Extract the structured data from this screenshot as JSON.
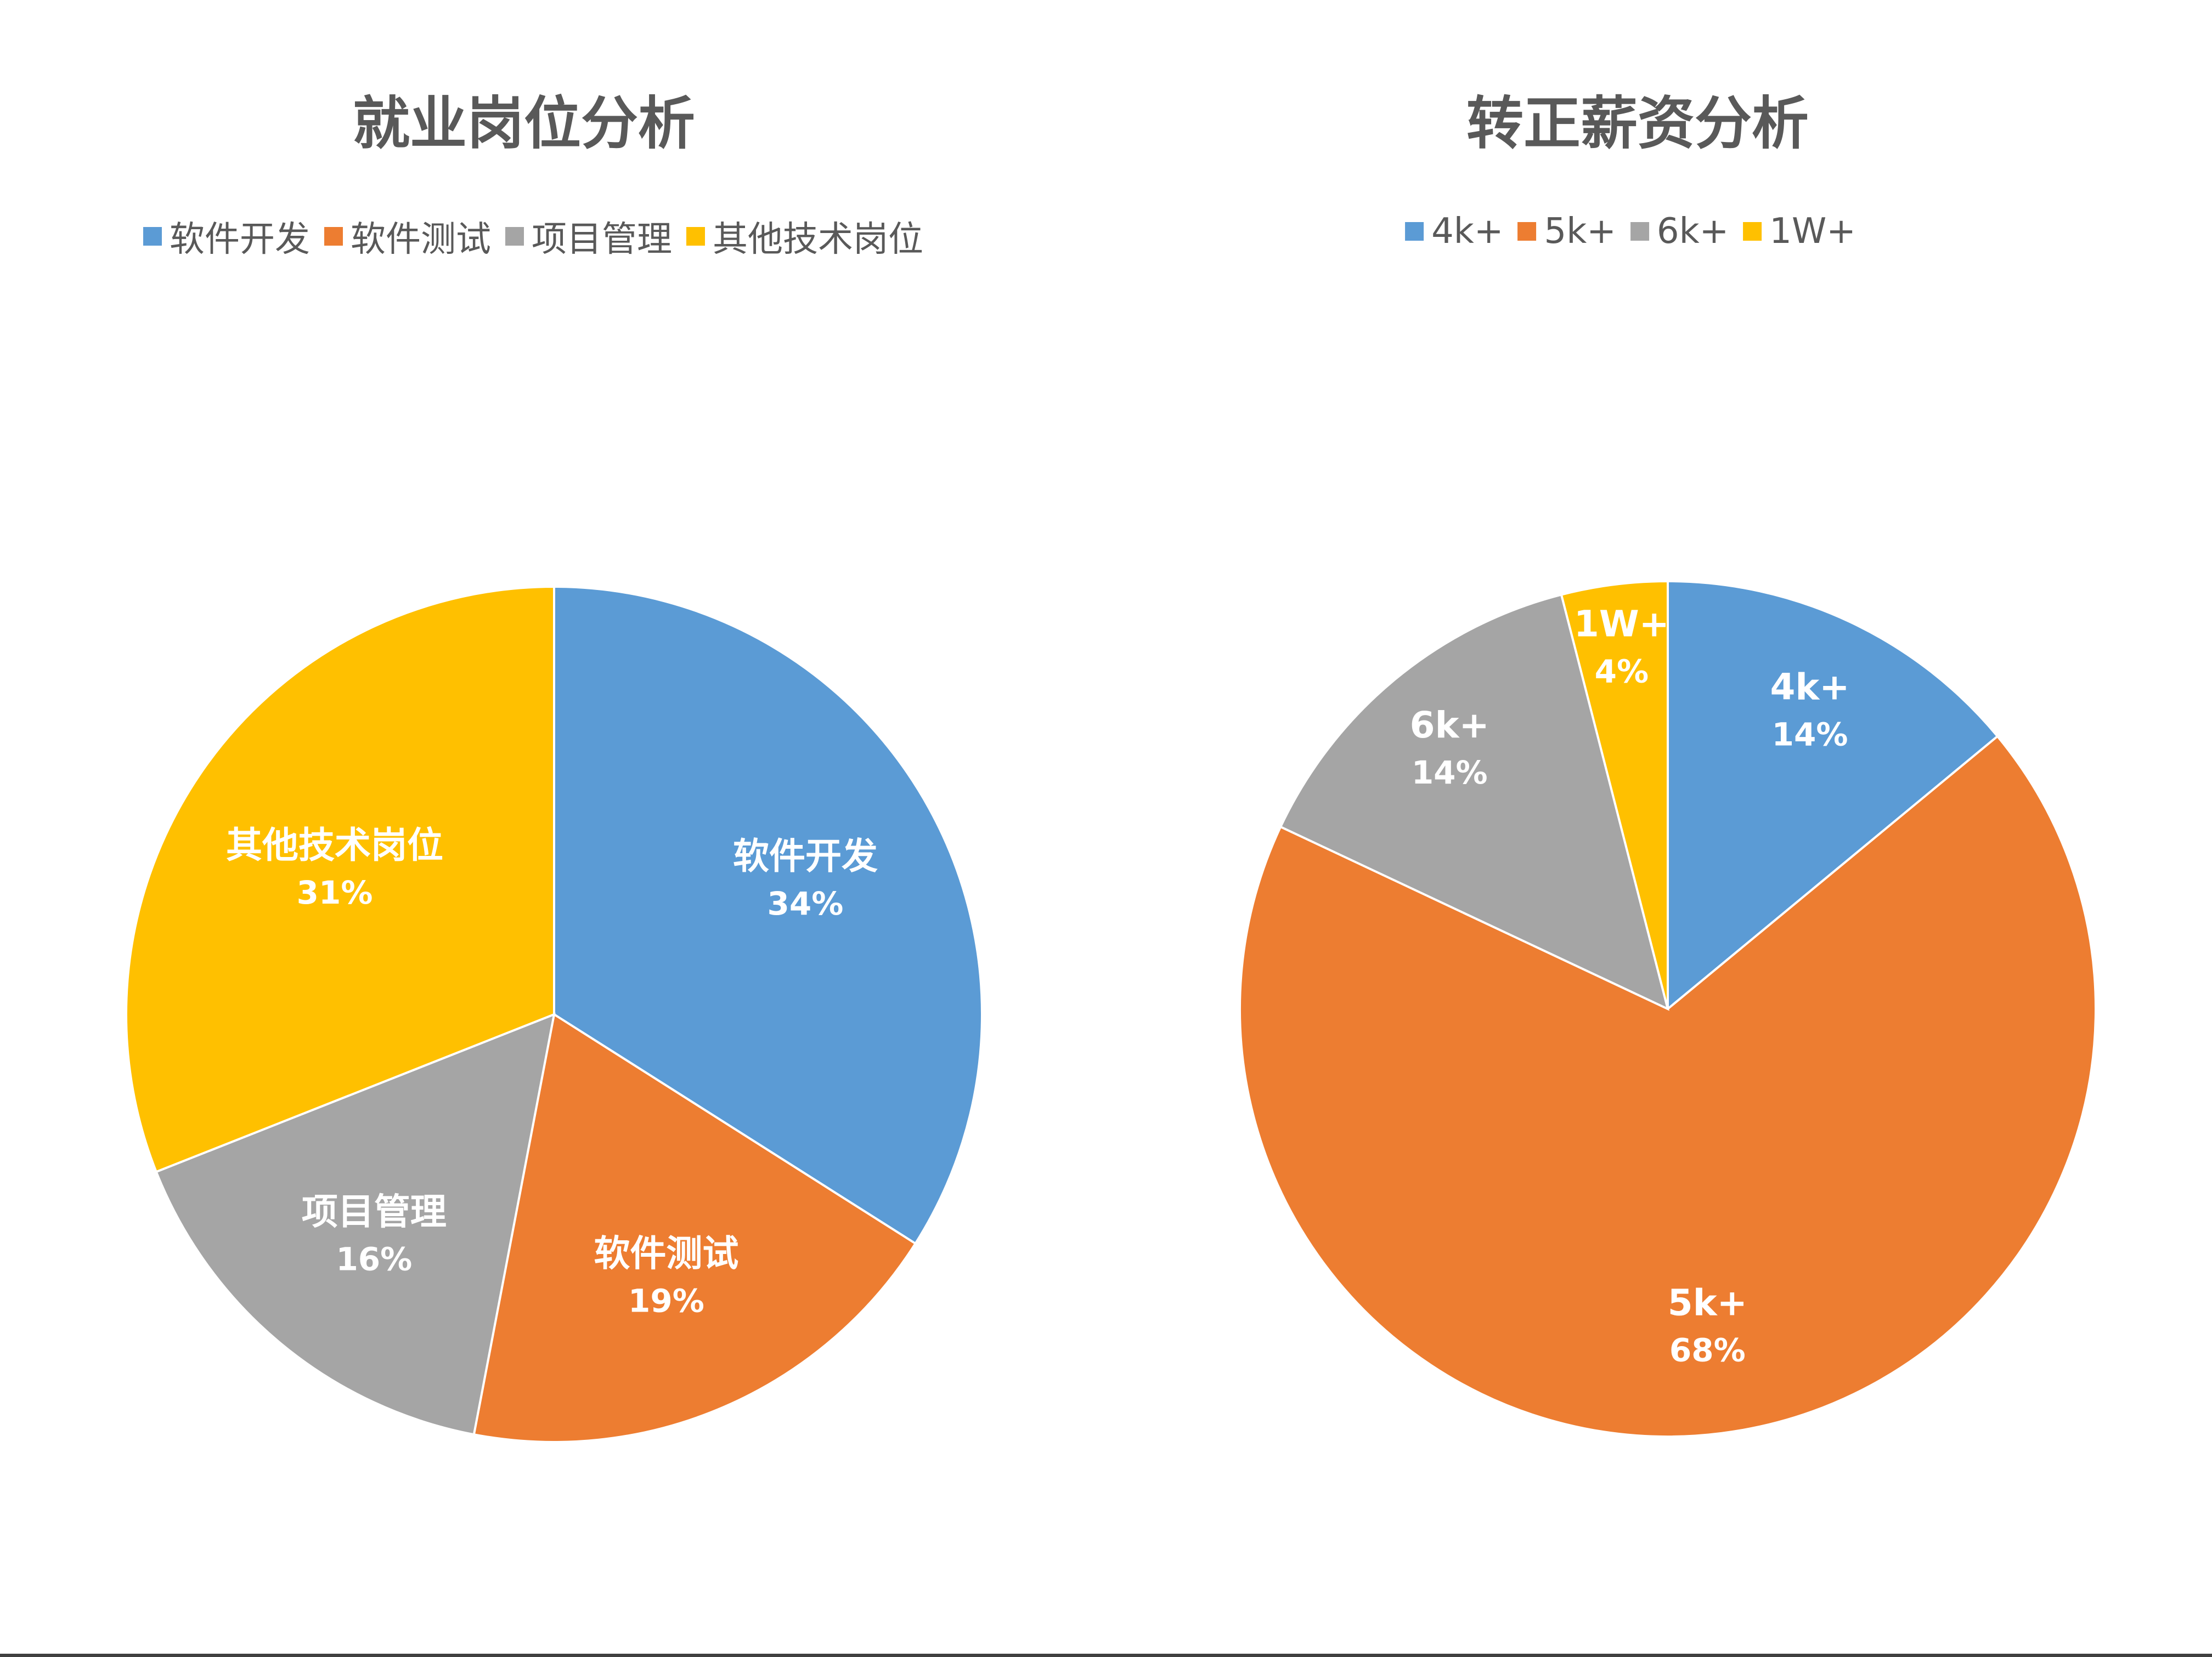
{
  "chart_data": [
    {
      "type": "pie",
      "title": "就业岗位分析",
      "legend_position": "top",
      "slices": [
        {
          "label": "软件开发",
          "value": 34,
          "display": "34%",
          "color": "#5B9BD5"
        },
        {
          "label": "软件测试",
          "value": 19,
          "display": "19%",
          "color": "#ED7D31"
        },
        {
          "label": "项目管理",
          "value": 16,
          "display": "16%",
          "color": "#A5A5A5"
        },
        {
          "label": "其他技术岗位",
          "value": 31,
          "display": "31%",
          "color": "#FFC000"
        }
      ]
    },
    {
      "type": "pie",
      "title": "转正薪资分析",
      "legend_position": "top",
      "slices": [
        {
          "label": "4k+",
          "value": 14,
          "display": "14%",
          "color": "#5B9BD5"
        },
        {
          "label": "5k+",
          "value": 68,
          "display": "68%",
          "color": "#ED7D31"
        },
        {
          "label": "6k+",
          "value": 14,
          "display": "14%",
          "color": "#A5A5A5"
        },
        {
          "label": "1W+",
          "value": 4,
          "display": "4%",
          "color": "#FFC000"
        }
      ]
    }
  ]
}
